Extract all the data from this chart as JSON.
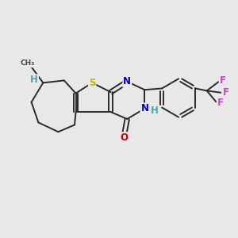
{
  "background_color": "#e8e8e8",
  "bond_color": "#2a2a2a",
  "bond_width": 1.4,
  "atom_colors": {
    "S": "#b8b800",
    "N": "#0000cc",
    "O": "#cc0000",
    "F": "#cc44cc",
    "H": "#44aaaa",
    "C": "#2a2a2a"
  },
  "font_size_atom": 8.5,
  "xlim": [
    0,
    10
  ],
  "ylim": [
    0,
    10
  ]
}
